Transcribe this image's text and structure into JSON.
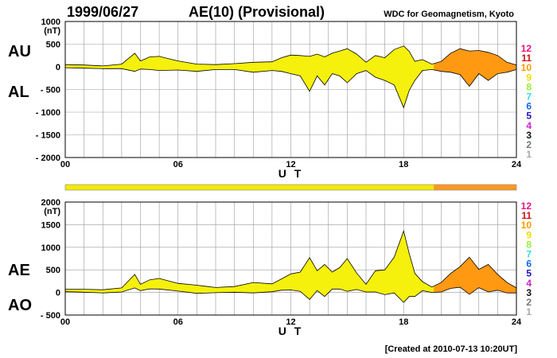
{
  "header": {
    "date": "1999/06/27",
    "title": "AE(10) (Provisional)",
    "source": "WDC for Geomagnetism, Kyoto"
  },
  "footer": {
    "created": "[Created at 2010-07-13 10:20UT]"
  },
  "legend": {
    "numbers": [
      "12",
      "11",
      "10",
      "9",
      "8",
      "7",
      "6",
      "5",
      "4",
      "3",
      "2",
      "1"
    ],
    "colors": [
      "#e8137e",
      "#cc1111",
      "#ff9900",
      "#eedd00",
      "#99ee33",
      "#33dddd",
      "#1166ee",
      "#2211bb",
      "#cc22cc",
      "#111111",
      "#777777",
      "#aaaaaa"
    ]
  },
  "chart_data": [
    {
      "type": "area",
      "panel": "top",
      "ylabel": "(nT)",
      "ylim": [
        -2000,
        1000
      ],
      "yticks": [
        "1000",
        "500",
        "0",
        "- 500",
        "- 1000",
        "- 1500",
        "- 2000"
      ],
      "xlim": [
        0,
        24
      ],
      "xticks": [
        "00",
        "06",
        "12",
        "18",
        "24"
      ],
      "xlabel": "U T",
      "series_labels": [
        "AU",
        "AL"
      ],
      "x": [
        0,
        1,
        2,
        3,
        3.7,
        4,
        4.5,
        5,
        6,
        7,
        8,
        9,
        10,
        11,
        11.5,
        12,
        12.5,
        13,
        13.4,
        13.8,
        14.2,
        14.6,
        15,
        15.5,
        16,
        16.5,
        17,
        17.5,
        18,
        18.3,
        18.6,
        19,
        19.5,
        20,
        20.5,
        21,
        21.5,
        22,
        22.5,
        23,
        23.5,
        24
      ],
      "au": [
        50,
        40,
        20,
        60,
        300,
        130,
        220,
        230,
        130,
        60,
        50,
        70,
        100,
        110,
        200,
        260,
        250,
        230,
        280,
        220,
        300,
        350,
        400,
        280,
        100,
        250,
        200,
        380,
        460,
        340,
        120,
        160,
        60,
        120,
        300,
        400,
        350,
        360,
        320,
        250,
        100,
        40
      ],
      "al": [
        -20,
        -30,
        -40,
        -40,
        -100,
        -50,
        -60,
        -80,
        -70,
        -100,
        -60,
        -60,
        -120,
        -80,
        -100,
        -150,
        -200,
        -540,
        -200,
        -400,
        -150,
        -200,
        -350,
        -150,
        -80,
        -230,
        -300,
        -400,
        -900,
        -520,
        -300,
        -80,
        -60,
        -100,
        -120,
        -170,
        -430,
        -150,
        -300,
        -150,
        -120,
        -60
      ]
    },
    {
      "type": "area",
      "panel": "bottom",
      "ylabel": "(nT)",
      "ylim": [
        -500,
        2000
      ],
      "yticks": [
        "2000",
        "1500",
        "1000",
        "500",
        "0",
        "- 500"
      ],
      "xlim": [
        0,
        24
      ],
      "xticks": [
        "00",
        "06",
        "12",
        "18",
        "24"
      ],
      "xlabel": "U T",
      "series_labels": [
        "AE",
        "AO"
      ],
      "x": [
        0,
        1,
        2,
        3,
        3.7,
        4,
        4.5,
        5,
        6,
        7,
        8,
        9,
        10,
        11,
        11.5,
        12,
        12.5,
        13,
        13.4,
        13.8,
        14.2,
        14.6,
        15,
        15.5,
        16,
        16.5,
        17,
        17.5,
        18,
        18.3,
        18.6,
        19,
        19.5,
        20,
        20.5,
        21,
        21.5,
        22,
        22.5,
        23,
        23.5,
        24
      ],
      "ae": [
        70,
        70,
        60,
        100,
        400,
        180,
        280,
        310,
        200,
        160,
        110,
        130,
        220,
        190,
        300,
        410,
        450,
        770,
        480,
        620,
        450,
        550,
        750,
        430,
        180,
        480,
        500,
        780,
        1360,
        860,
        420,
        240,
        120,
        220,
        420,
        570,
        780,
        510,
        620,
        400,
        220,
        100
      ],
      "ao": [
        15,
        5,
        -10,
        10,
        100,
        40,
        80,
        75,
        30,
        -20,
        -5,
        5,
        -10,
        15,
        50,
        55,
        25,
        -155,
        40,
        -90,
        75,
        75,
        25,
        65,
        10,
        10,
        -50,
        -10,
        -220,
        -90,
        -90,
        40,
        0,
        10,
        90,
        115,
        -40,
        105,
        10,
        50,
        -10,
        -10
      ]
    },
    {
      "type": "bar",
      "panel": "station-count",
      "segments": [
        {
          "start": 0,
          "end": 19.6,
          "count": "9",
          "color": "#f5e90c"
        },
        {
          "start": 19.6,
          "end": 24,
          "count": "10",
          "color": "#ff9922"
        }
      ],
      "colors": {
        "yellow": "#f5f00c",
        "orange": "#ff9912",
        "grid": "#999999",
        "axis": "#000000"
      }
    }
  ]
}
